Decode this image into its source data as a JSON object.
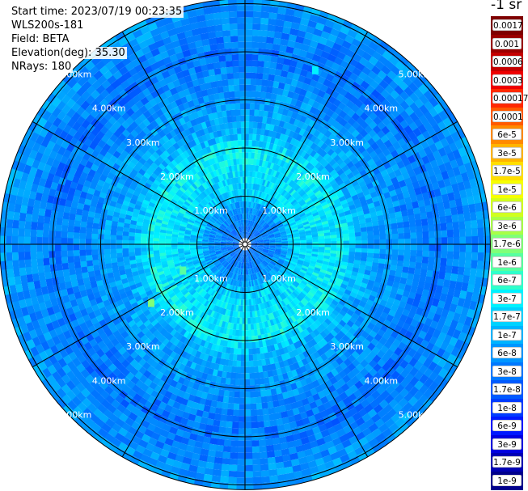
{
  "header": {
    "start_time": "Start time: 2023/07/19 00:23:35",
    "instrument": "WLS200s-181",
    "field": "Field: BETA",
    "elevation": "Elevation(deg): 35.30",
    "nrays": "NRays: 180"
  },
  "colorbar": {
    "unit": "-1 sr",
    "labels": [
      "0.0017",
      "0.001",
      "0.0006",
      "0.0003",
      "0.00017",
      "0.0001",
      "6e-5",
      "3e-5",
      "1.7e-5",
      "1e-5",
      "6e-6",
      "3e-6",
      "1.7e-6",
      "1e-6",
      "6e-7",
      "3e-7",
      "1.7e-7",
      "1e-7",
      "6e-8",
      "3e-8",
      "1.7e-8",
      "1e-8",
      "6e-9",
      "3e-9",
      "1.7e-9",
      "1e-9"
    ],
    "colors": [
      "#7f0000",
      "#9a0000",
      "#c40000",
      "#ee0000",
      "#ff2a00",
      "#ff5a00",
      "#ff8a00",
      "#ffb400",
      "#ffde00",
      "#f6ff00",
      "#d0ff20",
      "#a8ff48",
      "#80ff78",
      "#58ffa0",
      "#30ffca",
      "#00f2ff",
      "#00d2ff",
      "#00b4ff",
      "#0096ff",
      "#0078ff",
      "#005aff",
      "#003cff",
      "#0018ff",
      "#0000e0",
      "#0000b4",
      "#00008c"
    ]
  },
  "chart_data": {
    "type": "heatmap",
    "projection": "polar PPI",
    "ring_labels": [
      "1.00km",
      "2.00km",
      "3.00km",
      "4.00km",
      "5.00km"
    ],
    "ring_ranges_km": [
      1,
      2,
      3,
      4,
      5
    ],
    "spoke_angles_deg": [
      0,
      30,
      60,
      90,
      120,
      150,
      180,
      210,
      240,
      270,
      300,
      330
    ],
    "max_range_km": 5.1,
    "nrays": 180,
    "backscatter_profile": [
      {
        "range_km": 0.3,
        "level": "3e-8"
      },
      {
        "range_km": 0.8,
        "level": "6e-8"
      },
      {
        "range_km": 1.0,
        "level": "1.7e-7"
      },
      {
        "range_km": 2.0,
        "level": "3e-7"
      },
      {
        "range_km": 2.3,
        "level": "1e-7"
      },
      {
        "range_km": 3.0,
        "level": "6e-8"
      },
      {
        "range_km": 4.0,
        "level": "3e-8"
      },
      {
        "range_km": 5.0,
        "level": "6e-8"
      }
    ],
    "features": [
      {
        "azimuth_deg": 238,
        "range_km": 2.3,
        "level": "1.7e-6"
      },
      {
        "azimuth_deg": 243,
        "range_km": 2.0,
        "level": "6e-7"
      },
      {
        "azimuth_deg": 247,
        "range_km": 1.4,
        "level": "1e-6"
      },
      {
        "azimuth_deg": 22,
        "range_km": 3.9,
        "level": "3e-7"
      }
    ]
  }
}
